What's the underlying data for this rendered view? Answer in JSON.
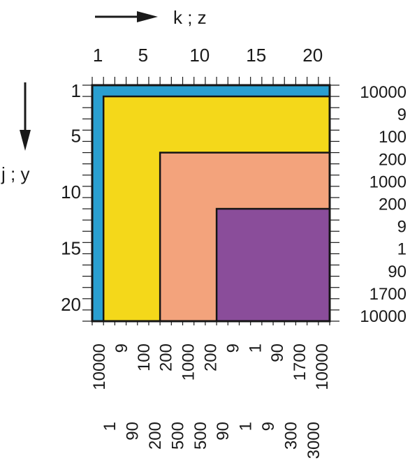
{
  "axes": {
    "horizontal_label": "k ; z",
    "vertical_label": "j ; y"
  },
  "top_ticks": [
    "1",
    "5",
    "10",
    "15",
    "20"
  ],
  "left_ticks": [
    "1",
    "5",
    "10",
    "15",
    "20"
  ],
  "right_values": [
    "10000",
    "9",
    "100",
    "200",
    "1000",
    "200",
    "9",
    "1",
    "90",
    "1700",
    "10000"
  ],
  "bottom_values_row1": [
    "10000",
    "9",
    "100",
    "200",
    "1000",
    "200",
    "9",
    "1",
    "90",
    "1700",
    "10000"
  ],
  "bottom_values_row2": [
    "1",
    "90",
    "200",
    "500",
    "500",
    "90",
    "1",
    "9",
    "300",
    "3000"
  ],
  "regions": [
    {
      "name": "outer-blue",
      "color": "#2a9fd0",
      "from_index": 1
    },
    {
      "name": "yellow",
      "color": "#f4d81a",
      "from_index": 2
    },
    {
      "name": "salmon",
      "color": "#f3a37c",
      "from_index": 7
    },
    {
      "name": "purple",
      "color": "#8a4d9a",
      "from_index": 12
    }
  ],
  "grid_size": 21,
  "colors": {
    "frame": "#151515",
    "ink": "#1a1a1a"
  }
}
